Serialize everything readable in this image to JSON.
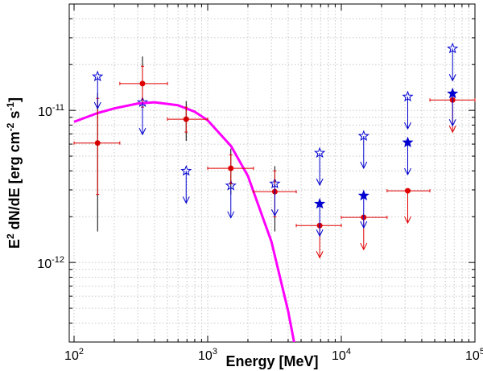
{
  "chart_data": {
    "type": "scatter",
    "xscale": "log",
    "yscale": "log",
    "grid": true,
    "xlabel": "Energy [MeV]",
    "ylabel": [
      "E",
      "2",
      " dN/dE [erg cm",
      "-2",
      " s",
      "-1",
      "]"
    ],
    "xlim": [
      92,
      100000
    ],
    "ylim": [
      3e-13,
      5e-11
    ],
    "xticks": [
      {
        "value": 100,
        "label": "10",
        "exponent": "2"
      },
      {
        "value": 1000,
        "label": "10",
        "exponent": "3"
      },
      {
        "value": 10000,
        "label": "10",
        "exponent": "4"
      },
      {
        "value": 100000,
        "label": "10",
        "exponent": "5"
      }
    ],
    "yticks": [
      {
        "value": 1e-12,
        "label": "10",
        "exponent": "-12"
      },
      {
        "value": 1e-11,
        "label": "10",
        "exponent": "-11"
      }
    ],
    "series": [
      {
        "marker": "circle",
        "color": "#e00000",
        "error_color": "#000000",
        "x": [
          150,
          325,
          690,
          1490,
          3180
        ],
        "values": [
          6.1e-12,
          1.5e-11,
          8.75e-12,
          4.16e-12,
          2.92e-12
        ],
        "x_low": [
          100,
          220,
          500,
          1000,
          2200
        ],
        "x_high": [
          220,
          500,
          1000,
          2200,
          4600
        ],
        "y_low": [
          2.8e-12,
          1.05e-11,
          7.2e-12,
          3.3e-12,
          2e-12
        ],
        "y_high": [
          1.2e-11,
          1.95e-11,
          1.05e-11,
          5.1e-12,
          4e-12
        ],
        "sys_low": [
          1.6e-12,
          1e-11,
          6.3e-12,
          2.8e-12,
          1.6e-12
        ],
        "sys_high": [
          1.3e-11,
          2.26e-11,
          1.15e-11,
          5.6e-12,
          4.3e-12
        ]
      },
      {
        "marker": "circle",
        "color": "#e00000",
        "upper_limit": true,
        "x": [
          6890,
          14700,
          31400,
          68000
        ],
        "values": [
          1.75e-12,
          1.98e-12,
          2.96e-12,
          1.17e-11
        ],
        "x_low": [
          4600,
          10000,
          22000,
          46000
        ],
        "x_high": [
          10000,
          22000,
          46000,
          100000
        ]
      },
      {
        "marker": "star-open",
        "color": "#0000d0",
        "upper_limit": true,
        "x": [
          150,
          325,
          690,
          1490,
          3180,
          6890,
          14700,
          31400,
          68000
        ],
        "values": [
          1.67e-11,
          1.13e-11,
          4e-12,
          3.2e-12,
          3.3e-12,
          5.25e-12,
          6.78e-12,
          1.23e-11,
          2.55e-11
        ]
      },
      {
        "marker": "star",
        "color": "#0000d0",
        "upper_limit": true,
        "x": [
          6890,
          14700,
          31400,
          68000
        ],
        "values": [
          2.43e-12,
          2.75e-12,
          6.15e-12,
          1.29e-11
        ]
      },
      {
        "marker": "line",
        "color": "#ff00ff",
        "x": [
          100,
          150,
          200,
          300,
          400,
          600,
          800,
          1000,
          1500,
          2000,
          3000,
          4000,
          4500
        ],
        "values": [
          8.4e-12,
          9.6e-12,
          1.03e-11,
          1.11e-11,
          1.13e-11,
          1.08e-11,
          9.8e-12,
          8.6e-12,
          5.8e-12,
          3.7e-12,
          1.37e-12,
          4.8e-13,
          2.8e-13
        ]
      }
    ]
  }
}
